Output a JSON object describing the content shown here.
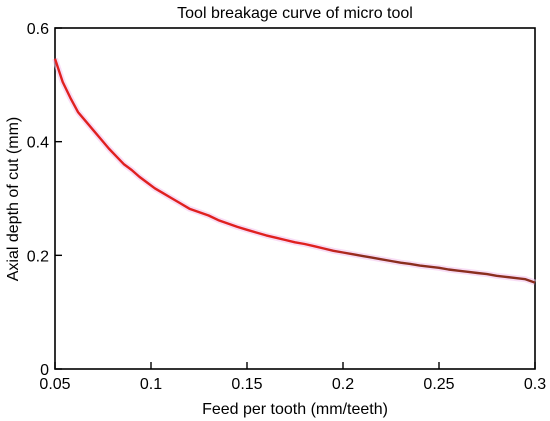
{
  "chart_data": {
    "type": "line",
    "title": "Tool breakage curve of micro tool",
    "xlabel": "Feed per tooth (mm/teeth)",
    "ylabel": "Axial depth of  cut (mm)",
    "xlim": [
      0.05,
      0.3
    ],
    "ylim": [
      0,
      0.6
    ],
    "xticks": [
      0.05,
      0.1,
      0.15,
      0.2,
      0.25,
      0.3
    ],
    "xtick_labels": [
      "0.05",
      "0.1",
      "0.15",
      "0.2",
      "0.25",
      "0.3"
    ],
    "yticks": [
      0,
      0.2,
      0.4,
      0.6
    ],
    "ytick_labels": [
      "0",
      "0.2",
      "0.4",
      "0.6"
    ],
    "grid": false,
    "colors": {
      "early": "#e0201f",
      "late": "#8b2e1e",
      "shadow": "#f3c6ef"
    },
    "series": [
      {
        "x": [
          0.05,
          0.054,
          0.058,
          0.062,
          0.066,
          0.07,
          0.074,
          0.078,
          0.082,
          0.086,
          0.09,
          0.094,
          0.098,
          0.102,
          0.106,
          0.11,
          0.115,
          0.12,
          0.125,
          0.13,
          0.135,
          0.14,
          0.145,
          0.15,
          0.155,
          0.16,
          0.165,
          0.17,
          0.175,
          0.18,
          0.185,
          0.19,
          0.195,
          0.2,
          0.205,
          0.21,
          0.215,
          0.22,
          0.225,
          0.23,
          0.235,
          0.24,
          0.245,
          0.25,
          0.255,
          0.26,
          0.265,
          0.27,
          0.275,
          0.28,
          0.285,
          0.29,
          0.295,
          0.3
        ],
        "y": [
          0.546,
          0.505,
          0.477,
          0.452,
          0.436,
          0.42,
          0.404,
          0.388,
          0.374,
          0.36,
          0.35,
          0.338,
          0.328,
          0.318,
          0.31,
          0.302,
          0.292,
          0.282,
          0.276,
          0.27,
          0.262,
          0.256,
          0.25,
          0.245,
          0.24,
          0.235,
          0.231,
          0.227,
          0.223,
          0.22,
          0.216,
          0.212,
          0.208,
          0.205,
          0.202,
          0.199,
          0.196,
          0.193,
          0.19,
          0.187,
          0.185,
          0.182,
          0.18,
          0.178,
          0.175,
          0.173,
          0.171,
          0.169,
          0.167,
          0.164,
          0.162,
          0.16,
          0.158,
          0.152
        ]
      }
    ]
  }
}
